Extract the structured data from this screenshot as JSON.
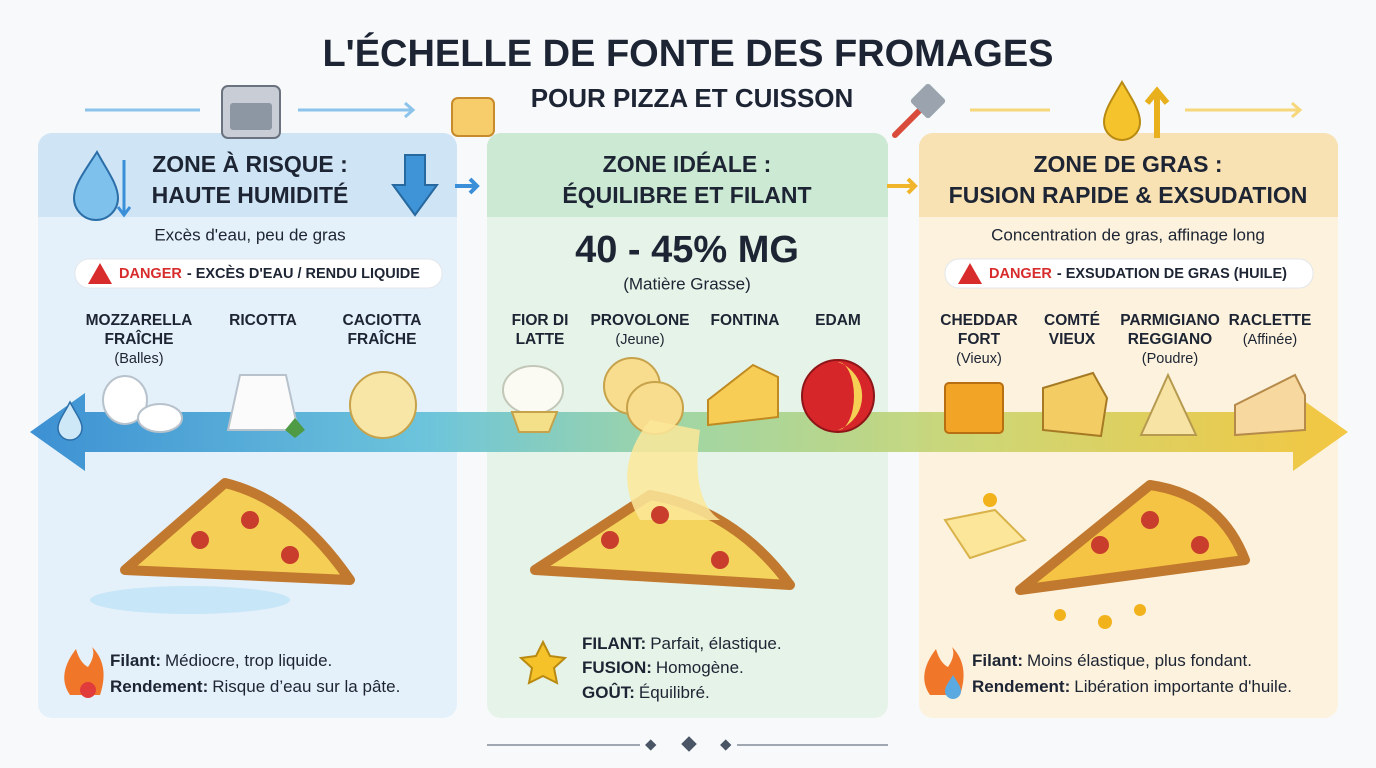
{
  "title": "L'ÉCHELLE DE FONTE DES FROMAGES",
  "subtitle": "POUR PIZZA ET CUISSON",
  "zones": [
    {
      "title_lines": [
        "ZONE À RISQUE :",
        "HAUTE HUMIDITÉ"
      ],
      "description": "Excès d'eau, peu de gras",
      "warning_label": "DANGER",
      "warning_text": "- EXCÈS D'EAU / RENDU LIQUIDE",
      "cheeses": [
        {
          "name": [
            "MOZZARELLA",
            "FRAÎCHE"
          ],
          "note": "(Balles)"
        },
        {
          "name": [
            "RICOTTA"
          ]
        },
        {
          "name": [
            "CACIOTTA",
            "FRAÎCHE"
          ]
        }
      ],
      "notes": [
        {
          "label": "Filant:",
          "text": "Médiocre, trop liquide."
        },
        {
          "label": "Rendement:",
          "text": "Risque d’eau sur la pâte."
        }
      ]
    },
    {
      "title_lines": [
        "ZONE IDÉALE :",
        "ÉQUILIBRE ET FILANT"
      ],
      "headline": "40 - 45% MG",
      "description": "(Matière Grasse)",
      "cheeses": [
        {
          "name": [
            "FIOR DI",
            "LATTE"
          ]
        },
        {
          "name": [
            "PROVOLONE"
          ],
          "note": "(Jeune)"
        },
        {
          "name": [
            "FONTINA"
          ]
        },
        {
          "name": [
            "EDAM"
          ]
        }
      ],
      "notes": [
        {
          "label": "FILANT:",
          "text": "Parfait, élastique."
        },
        {
          "label": "FUSION:",
          "text": "Homogène."
        },
        {
          "label": "GOÛT:",
          "text": "Équilibré."
        }
      ]
    },
    {
      "title_lines": [
        "ZONE DE GRAS :",
        "FUSION RAPIDE & EXSUDATION"
      ],
      "description": "Concentration de gras, affinage long",
      "warning_label": "DANGER",
      "warning_text": "- EXSUDATION DE GRAS (HUILE)",
      "cheeses": [
        {
          "name": [
            "CHEDDAR",
            "FORT"
          ],
          "note": "(Vieux)"
        },
        {
          "name": [
            "COMTÉ",
            "VIEUX"
          ]
        },
        {
          "name": [
            "PARMIGIANO",
            "REGGIANO"
          ],
          "note": "(Poudre)"
        },
        {
          "name": [
            "RACLETTE"
          ],
          "note": "(Affinée)"
        }
      ],
      "notes": [
        {
          "label": "Filant:",
          "text": "Moins élastique, plus fondant."
        },
        {
          "label": "Rendement:",
          "text": "Libération importante d'huile."
        }
      ]
    }
  ]
}
